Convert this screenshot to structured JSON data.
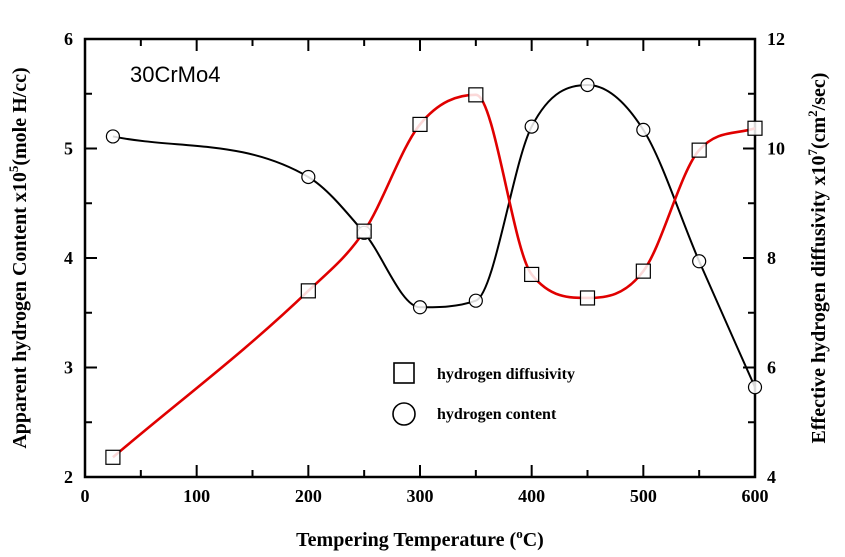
{
  "chart_data": {
    "type": "line",
    "annotation": "30CrMo4",
    "x_axis": {
      "label": "Tempering Temperature",
      "label_sup": "o",
      "label_unit": "C",
      "range": [
        0,
        600
      ],
      "ticks": [
        "0",
        "100",
        "200",
        "300",
        "400",
        "500",
        "600"
      ],
      "tick_values": [
        0,
        100,
        200,
        300,
        400,
        500,
        600
      ]
    },
    "y_left": {
      "label_main": "Apparent hydrogen Content x10",
      "label_sup": "5",
      "label_unit": "(mole H/cc)",
      "range": [
        2,
        6
      ],
      "ticks": [
        "2",
        "3",
        "4",
        "5",
        "6"
      ],
      "tick_values": [
        2,
        3,
        4,
        5,
        6
      ]
    },
    "y_right": {
      "label_main": "Effective hydrogen diffusivity x10",
      "label_sup": "7",
      "label_unit": "(cm",
      "label_sup2": "2",
      "label_unit2": "/sec)",
      "range": [
        4,
        12
      ],
      "ticks": [
        "4",
        "6",
        "8",
        "10",
        "12"
      ],
      "tick_values": [
        4,
        6,
        8,
        10,
        12
      ]
    },
    "legend": {
      "placement": "lower-center",
      "items": [
        {
          "marker": "square",
          "label": "hydrogen diffusivity"
        },
        {
          "marker": "circle",
          "label": "hydrogen content"
        }
      ]
    },
    "series": [
      {
        "name": "hydrogen content",
        "axis": "left",
        "marker": "circle",
        "line_color": "#000000",
        "x": [
          25,
          200,
          250,
          300,
          350,
          400,
          450,
          500,
          550,
          600
        ],
        "y": [
          5.11,
          4.74,
          4.23,
          3.55,
          3.61,
          5.2,
          5.58,
          5.17,
          3.97,
          2.82
        ]
      },
      {
        "name": "hydrogen diffusivity",
        "axis": "right",
        "marker": "square",
        "line_color": "#e00000",
        "x": [
          25,
          200,
          250,
          300,
          350,
          400,
          450,
          500,
          550,
          600
        ],
        "y": [
          4.36,
          7.4,
          8.49,
          10.44,
          10.98,
          7.7,
          7.27,
          7.76,
          9.97,
          10.37
        ]
      }
    ]
  }
}
